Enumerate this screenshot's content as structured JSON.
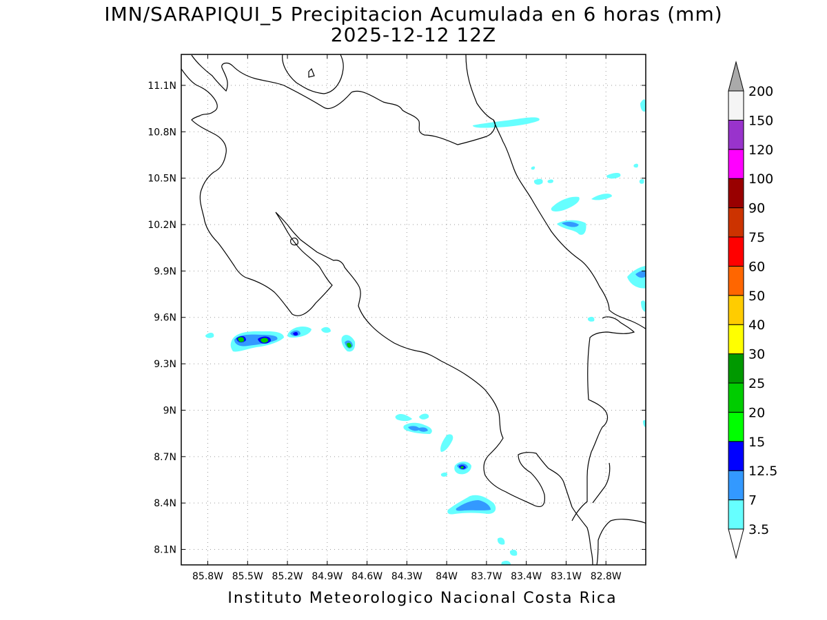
{
  "title": {
    "line1": "IMN/SARAPIQUI_5 Precipitacion Acumulada en 6 horas (mm)",
    "line2": "2025-12-12 12Z"
  },
  "footer": "Instituto Meteorologico Nacional Costa Rica",
  "map": {
    "lon_ticks": [
      "85.8W",
      "85.5W",
      "85.2W",
      "84.9W",
      "84.6W",
      "84.3W",
      "84W",
      "83.7W",
      "83.4W",
      "83.1W",
      "82.8W"
    ],
    "lat_ticks": [
      "11.1N",
      "10.8N",
      "10.5N",
      "10.2N",
      "9.9N",
      "9.6N",
      "9.3N",
      "9N",
      "8.7N",
      "8.4N",
      "8.1N"
    ],
    "lon_values": [
      -85.8,
      -85.5,
      -85.2,
      -84.9,
      -84.6,
      -84.3,
      -84.0,
      -83.7,
      -83.4,
      -83.1,
      -82.8
    ],
    "lat_values": [
      11.1,
      10.8,
      10.5,
      10.2,
      9.9,
      9.6,
      9.3,
      9.0,
      8.7,
      8.4,
      8.1
    ],
    "lon_range": [
      -86.0,
      -82.5
    ],
    "lat_range": [
      8.0,
      11.3
    ],
    "grid": true
  },
  "colorbar": {
    "levels": [
      "3.5",
      "7",
      "12.5",
      "15",
      "20",
      "25",
      "30",
      "40",
      "50",
      "60",
      "75",
      "90",
      "100",
      "120",
      "150",
      "200"
    ],
    "colors": [
      "#66ffff",
      "#3399ff",
      "#0000ff",
      "#00ff00",
      "#00cc00",
      "#009900",
      "#ffff00",
      "#ffcc00",
      "#ff6600",
      "#ff0000",
      "#cc3300",
      "#990000",
      "#ff00ff",
      "#9933cc",
      "#f5f5f5",
      "#aaaaaa"
    ]
  },
  "precip_colors": {
    "light": "#66ffff",
    "moderate": "#3399ff",
    "heavy": "#0000ff",
    "very_heavy": "#00cc00",
    "extreme": "#009900"
  }
}
